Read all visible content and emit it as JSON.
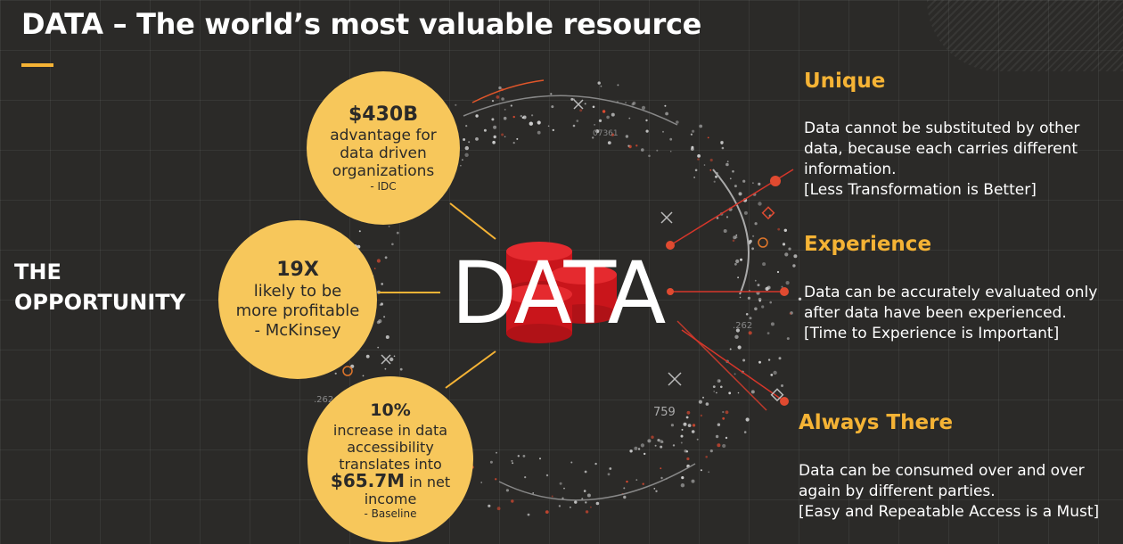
{
  "title": "DATA – The world’s most valuable resource",
  "opportunity": [
    "THE",
    "OPPORTUNITY"
  ],
  "center_word": "DATA",
  "circles": [
    {
      "big": "$430B",
      "lines": [
        "advantage for",
        "data driven",
        "organizations"
      ],
      "source": "- IDC"
    },
    {
      "big": "19X",
      "lines": [
        "likely to be",
        "more profitable",
        "- McKinsey"
      ]
    },
    {
      "big": "10%",
      "lines": [
        "increase in data",
        "accessibility",
        "translates into"
      ],
      "money": "$65.7M",
      "money_suffix": " in net",
      "last": "income",
      "source": "- Baseline"
    }
  ],
  "qualities": [
    {
      "heading": "Unique",
      "lines": [
        "Data cannot be substituted by other",
        "data, because each carries different",
        "information.",
        "[Less Transformation is Better]"
      ]
    },
    {
      "heading": "Experience",
      "lines": [
        "Data can be accurately evaluated only",
        "after data have been experienced.",
        "[Time to Experience is Important]"
      ]
    },
    {
      "heading": "Always There",
      "lines": [
        "Data can be consumed over and over",
        "again by different parties.",
        "[Easy and Repeatable Access is a Must]"
      ]
    }
  ],
  "graphic_labels": [
    "07361",
    ".262",
    ".262",
    "759"
  ],
  "colors": {
    "accent": "#f5b335",
    "circle": "#f7c75b",
    "database": "#d6191e",
    "background": "#2b2a28"
  }
}
